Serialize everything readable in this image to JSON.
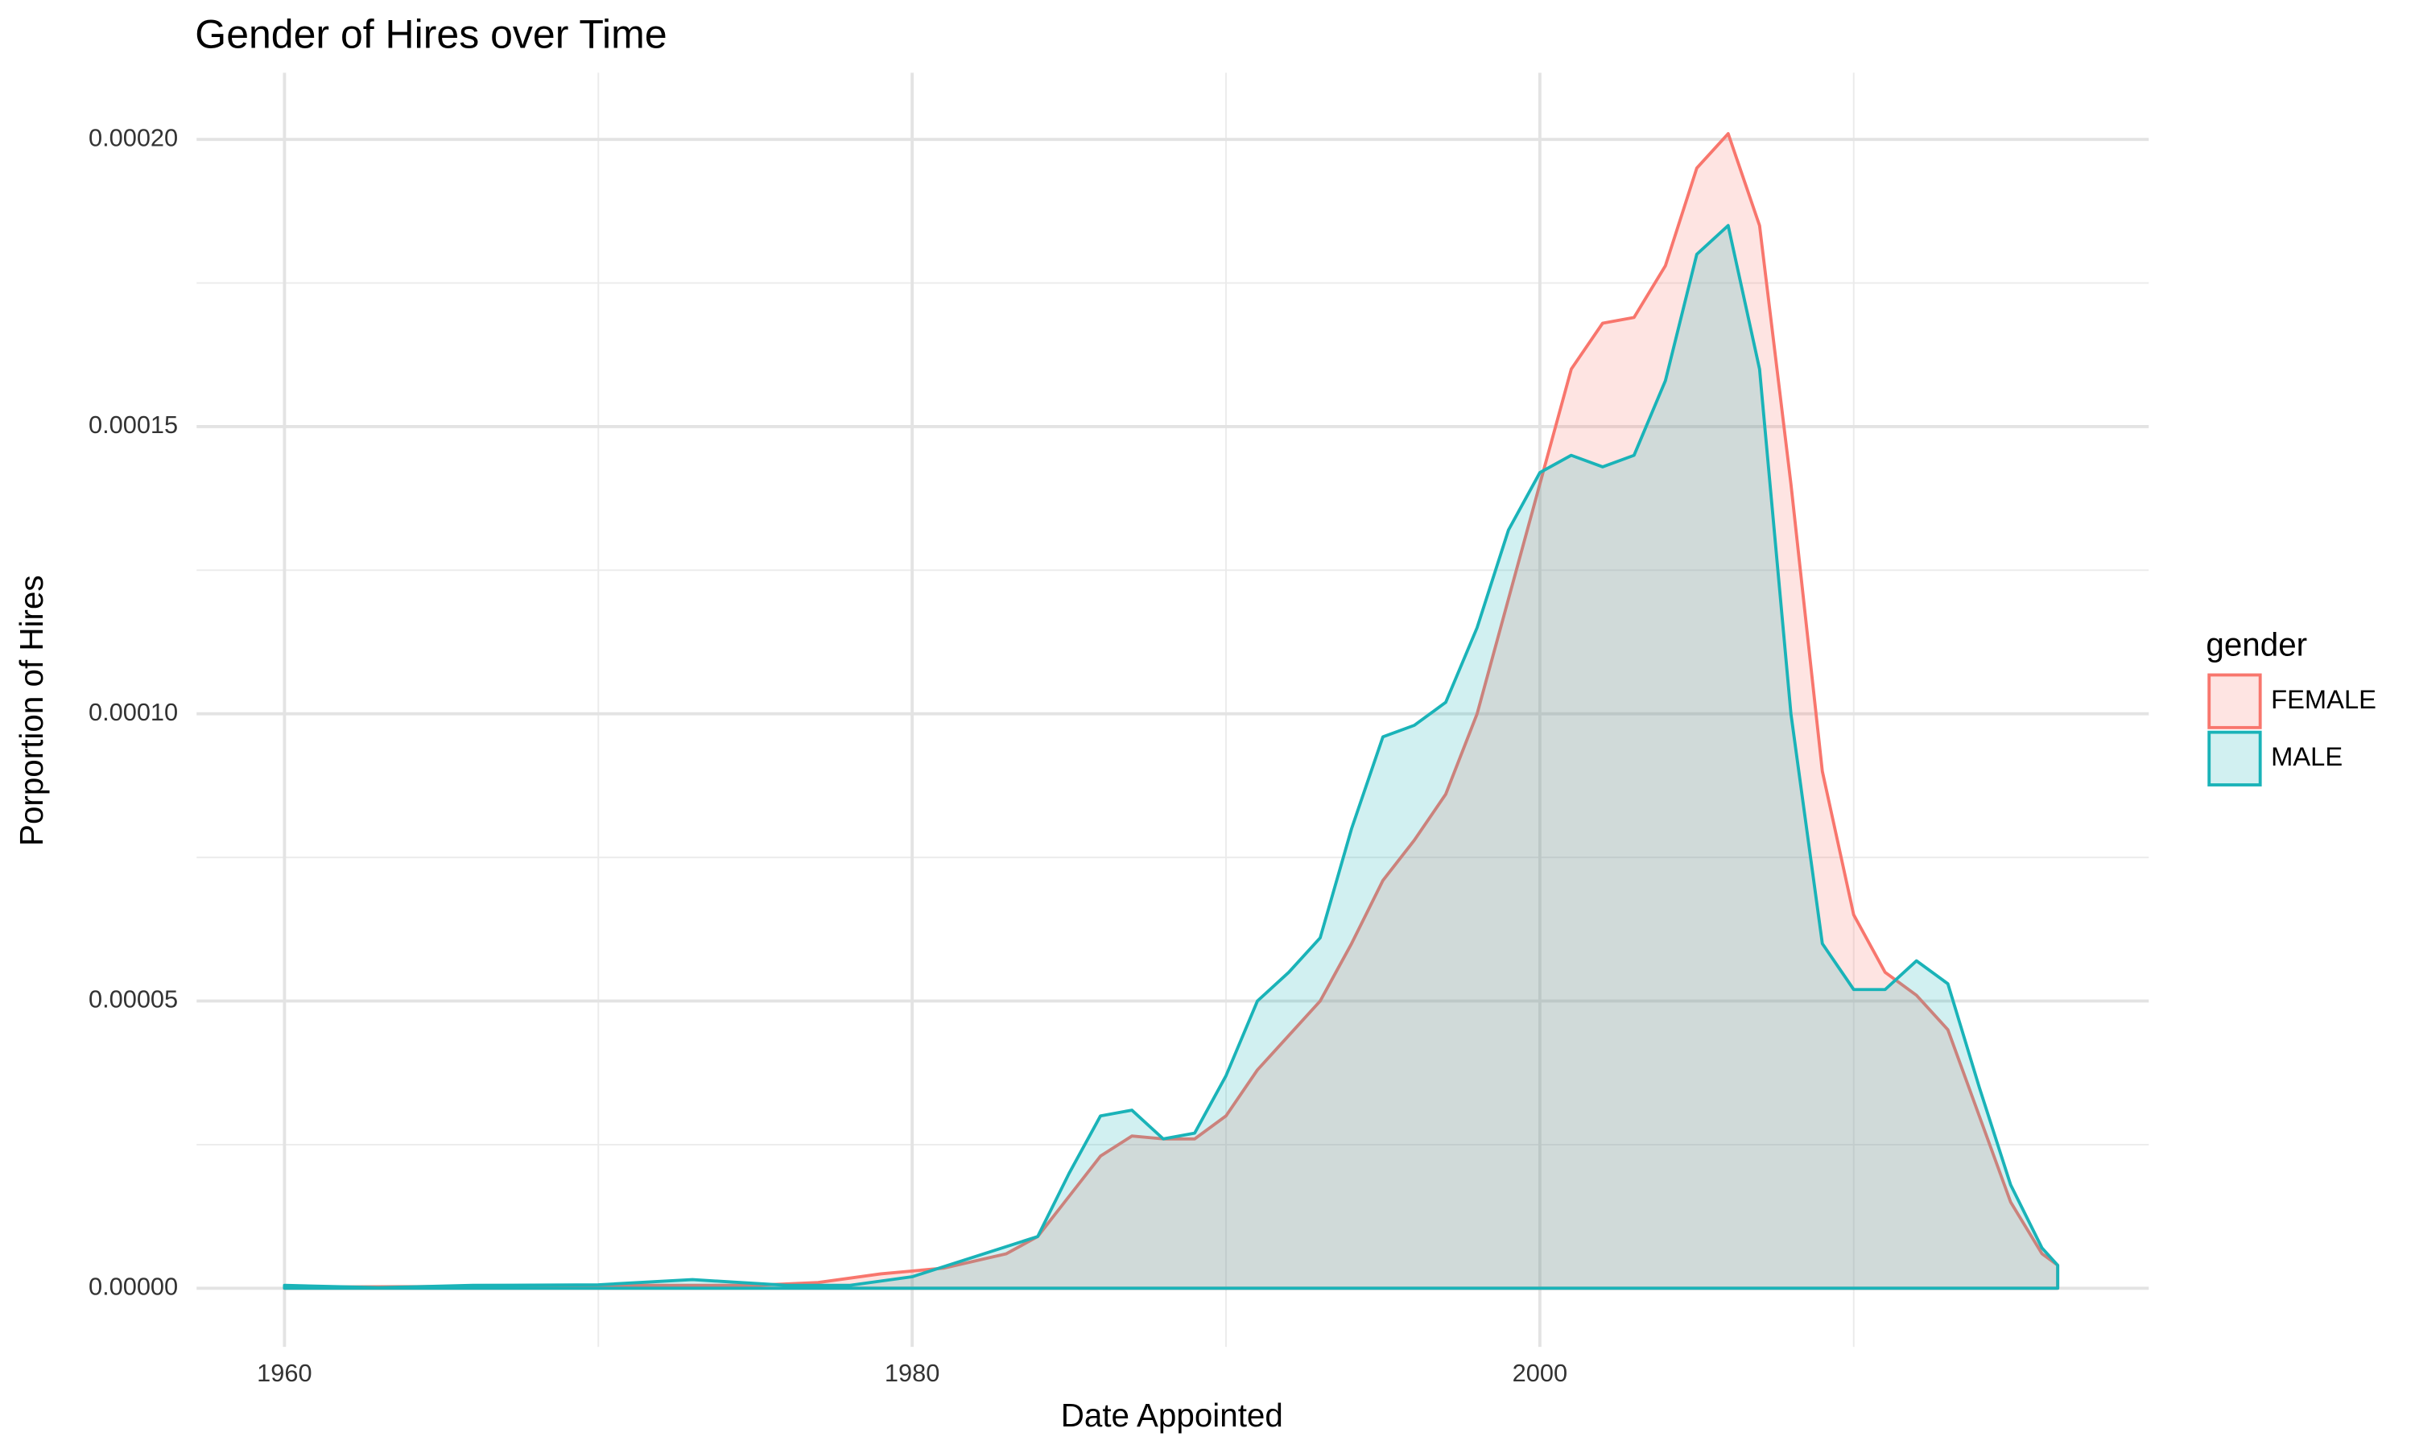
{
  "chart_data": {
    "type": "density",
    "title": "Gender of Hires over Time",
    "x_label": "Date Appointed",
    "y_label": "Porportion of Hires",
    "legend_title": "gender",
    "legend_position": "right",
    "grid": true,
    "xlim": [
      1957.2,
      2019.4
    ],
    "xticks": [
      1960,
      1980,
      2000
    ],
    "x_minor_grid": [
      1970,
      1990,
      2010
    ],
    "ylim": [
      -1.02e-05,
      0.0002116
    ],
    "yticks": [
      {
        "value": 0,
        "label": "0.00000"
      },
      {
        "value": 5e-05,
        "label": "0.00005"
      },
      {
        "value": 0.0001,
        "label": "0.00010"
      },
      {
        "value": 0.00015,
        "label": "0.00015"
      },
      {
        "value": 0.0002,
        "label": "0.00020"
      }
    ],
    "y_minor_grid": [
      2.5e-05,
      7.5e-05,
      0.000125,
      0.000175
    ],
    "series": [
      {
        "name": "FEMALE",
        "color": "#F8766D",
        "x": [
          1960,
          1965,
          1970,
          1975,
          1977,
          1979,
          1981,
          1983,
          1984,
          1985,
          1986,
          1987,
          1988,
          1989,
          1990,
          1991,
          1992,
          1993,
          1994,
          1995,
          1996,
          1997,
          1998,
          1999,
          2000,
          2001,
          2002,
          2003,
          2004,
          2005,
          2006,
          2007,
          2008,
          2009,
          2010,
          2011,
          2012,
          2013,
          2014,
          2015,
          2016,
          2016.5
        ],
        "values": [
          2e-07,
          3e-07,
          5e-07,
          5e-07,
          1e-06,
          2.5e-06,
          3.5e-06,
          6e-06,
          9e-06,
          1.6e-05,
          2.3e-05,
          2.65e-05,
          2.6e-05,
          2.6e-05,
          3e-05,
          3.8e-05,
          4.4e-05,
          5e-05,
          6e-05,
          7.1e-05,
          7.8e-05,
          8.6e-05,
          0.0001,
          0.00012,
          0.00014,
          0.00016,
          0.000168,
          0.000169,
          0.000178,
          0.000195,
          0.000201,
          0.000185,
          0.00014,
          9e-05,
          6.5e-05,
          5.5e-05,
          5.1e-05,
          4.5e-05,
          3e-05,
          1.5e-05,
          6e-06,
          4e-06
        ]
      },
      {
        "name": "MALE",
        "color": "#1AB3B8",
        "x": [
          1960,
          1963,
          1966,
          1970,
          1973,
          1976,
          1978,
          1980,
          1982,
          1984,
          1985,
          1986,
          1987,
          1988,
          1989,
          1990,
          1991,
          1992,
          1993,
          1994,
          1995,
          1996,
          1997,
          1998,
          1999,
          2000,
          2001,
          2002,
          2003,
          2004,
          2005,
          2006,
          2007,
          2008,
          2009,
          2010,
          2011,
          2012,
          2013,
          2014,
          2015,
          2016,
          2016.5
        ],
        "values": [
          5e-07,
          1e-07,
          5e-07,
          6e-07,
          1.5e-06,
          5e-07,
          5e-07,
          2e-06,
          5.5e-06,
          9e-06,
          2e-05,
          3e-05,
          3.1e-05,
          2.6e-05,
          2.7e-05,
          3.7e-05,
          5e-05,
          5.5e-05,
          6.1e-05,
          8e-05,
          9.6e-05,
          9.8e-05,
          0.000102,
          0.000115,
          0.000132,
          0.000142,
          0.000145,
          0.000143,
          0.000145,
          0.000158,
          0.00018,
          0.000185,
          0.00016,
          0.0001,
          6e-05,
          5.2e-05,
          5.2e-05,
          5.7e-05,
          5.3e-05,
          3.5e-05,
          1.8e-05,
          7e-06,
          4e-06
        ]
      }
    ]
  }
}
